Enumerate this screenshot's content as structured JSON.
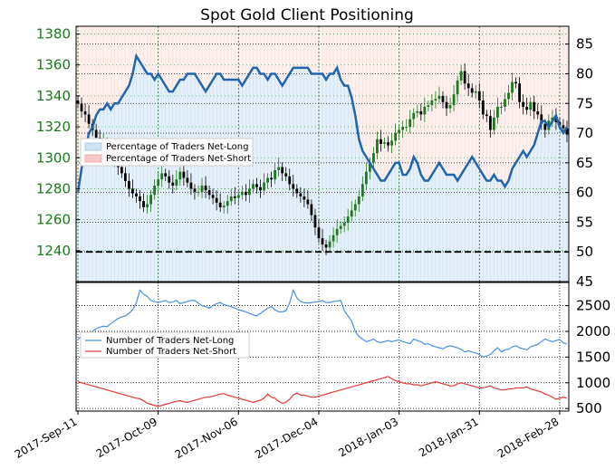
{
  "chart_data": [
    {
      "type": "candlestick",
      "title": "Spot Gold Client Positioning",
      "ylim": [
        1220,
        1385
      ],
      "y_ticks": [
        1240,
        1260,
        1280,
        1300,
        1320,
        1340,
        1360,
        1380
      ],
      "x_tick_labels": [
        "2017-Sep-11",
        "2017-Oct-09",
        "2017-Nov-06",
        "2017-Dec-04",
        "2018-Jan-03",
        "2018-Jan-31",
        "2018-Feb-28"
      ],
      "reference_line": 50,
      "secondary_axis": {
        "label": "",
        "ylim": [
          45,
          88
        ],
        "ticks": [
          45,
          50,
          55,
          60,
          65,
          70,
          75,
          80,
          85
        ]
      },
      "legend": [
        {
          "label": "Percentage of Traders Net-Long",
          "color": "#cfe3f7"
        },
        {
          "label": "Percentage of Traders Net-Short",
          "color": "#f7c9c9"
        }
      ],
      "series": [
        {
          "name": "Price",
          "close": [
            1335,
            1330,
            1328,
            1322,
            1318,
            1313,
            1306,
            1310,
            1305,
            1298,
            1300,
            1294,
            1290,
            1285,
            1280,
            1277,
            1275,
            1272,
            1268,
            1270,
            1276,
            1282,
            1286,
            1290,
            1288,
            1284,
            1282,
            1286,
            1291,
            1287,
            1284,
            1280,
            1278,
            1278,
            1282,
            1279,
            1276,
            1274,
            1271,
            1268,
            1269,
            1272,
            1275,
            1274,
            1276,
            1278,
            1276,
            1280,
            1283,
            1281,
            1279,
            1284,
            1287,
            1286,
            1292,
            1294,
            1290,
            1288,
            1283,
            1280,
            1277,
            1275,
            1273,
            1270,
            1263,
            1255,
            1248,
            1244,
            1242,
            1246,
            1250,
            1254,
            1256,
            1258,
            1262,
            1266,
            1270,
            1275,
            1283,
            1291,
            1297,
            1303,
            1312,
            1309,
            1310,
            1308,
            1311,
            1316,
            1318,
            1320,
            1320,
            1325,
            1329,
            1330,
            1328,
            1333,
            1334,
            1337,
            1338,
            1340,
            1336,
            1332,
            1334,
            1341,
            1350,
            1356,
            1348,
            1345,
            1342,
            1343,
            1337,
            1328,
            1327,
            1318,
            1326,
            1333,
            1333,
            1338,
            1342,
            1349,
            1348,
            1336,
            1333,
            1331,
            1336,
            1330,
            1328,
            1322,
            1318,
            1324,
            1326,
            1323,
            1321,
            1319,
            1315
          ]
        },
        {
          "name": "Percentage of Traders Net-Long",
          "values": [
            60,
            64,
            67,
            70,
            71,
            73,
            74,
            74,
            75,
            74,
            75,
            75,
            76,
            77,
            78,
            80,
            83,
            82,
            81,
            80,
            80,
            79,
            80,
            79,
            78,
            77,
            77,
            78,
            79,
            79,
            80,
            80,
            80,
            79,
            78,
            77,
            78,
            79,
            80,
            80,
            79,
            79,
            79,
            79,
            79,
            78,
            79,
            80,
            81,
            81,
            80,
            80,
            79,
            80,
            80,
            79,
            78,
            79,
            80,
            81,
            81,
            81,
            81,
            81,
            80,
            80,
            80,
            80,
            79,
            80,
            80,
            81,
            79,
            78,
            78,
            76,
            73,
            69,
            67,
            66,
            65,
            64,
            63,
            62,
            62,
            63,
            64,
            65,
            65,
            63,
            63,
            64,
            66,
            65,
            63,
            62,
            62,
            63,
            64,
            65,
            64,
            63,
            63,
            63,
            62,
            63,
            64,
            65,
            66,
            65,
            64,
            63,
            62,
            62,
            63,
            62,
            62,
            61,
            62,
            64,
            65,
            66,
            67,
            66,
            67,
            68,
            70,
            72,
            72,
            71,
            72,
            73,
            71,
            70,
            71
          ]
        },
        {
          "name": "Number of Traders Net-Long",
          "values": [
            1850,
            1900,
            1980,
            1950,
            2000,
            2050,
            2080,
            2100,
            2090,
            2150,
            2200,
            2250,
            2280,
            2300,
            2350,
            2420,
            2550,
            2800,
            2720,
            2680,
            2600,
            2580,
            2560,
            2580,
            2600,
            2560,
            2570,
            2600,
            2540,
            2560,
            2580,
            2600,
            2600,
            2550,
            2500,
            2480,
            2450,
            2500,
            2540,
            2560,
            2520,
            2500,
            2480,
            2450,
            2420,
            2400,
            2380,
            2350,
            2320,
            2300,
            2350,
            2400,
            2450,
            2480,
            2420,
            2380,
            2380,
            2400,
            2550,
            2800,
            2650,
            2580,
            2560,
            2550,
            2560,
            2570,
            2580,
            2600,
            2560,
            2560,
            2580,
            2590,
            2600,
            2400,
            2300,
            2200,
            2000,
            1900,
            1850,
            1800,
            1820,
            1850,
            1800,
            1780,
            1800,
            1820,
            1800,
            1820,
            1830,
            1800,
            1780,
            1760,
            1850,
            1820,
            1800,
            1750,
            1760,
            1720,
            1700,
            1680,
            1660,
            1700,
            1720,
            1700,
            1680,
            1650,
            1600,
            1620,
            1600,
            1580,
            1550,
            1500,
            1520,
            1550,
            1620,
            1680,
            1600,
            1640,
            1650,
            1700,
            1720,
            1680,
            1660,
            1640,
            1700,
            1720,
            1750,
            1800,
            1850,
            1820,
            1800,
            1820,
            1840,
            1780,
            1750
          ]
        },
        {
          "name": "Number of Traders Net-Short",
          "values": [
            1020,
            1000,
            980,
            960,
            940,
            920,
            900,
            880,
            860,
            840,
            820,
            800,
            780,
            760,
            740,
            720,
            700,
            690,
            650,
            600,
            580,
            560,
            540,
            560,
            580,
            600,
            620,
            640,
            650,
            630,
            620,
            640,
            660,
            680,
            700,
            720,
            720,
            740,
            760,
            780,
            790,
            760,
            740,
            720,
            700,
            680,
            660,
            640,
            620,
            640,
            660,
            700,
            780,
            720,
            700,
            640,
            600,
            620,
            680,
            760,
            800,
            760,
            760,
            740,
            720,
            720,
            740,
            760,
            780,
            800,
            820,
            840,
            860,
            880,
            900,
            920,
            940,
            960,
            980,
            1000,
            1020,
            1040,
            1060,
            1080,
            1100,
            1120,
            1080,
            1040,
            1020,
            1000,
            980,
            980,
            960,
            960,
            940,
            960,
            980,
            1000,
            1020,
            1000,
            980,
            960,
            940,
            940,
            980,
            1000,
            980,
            960,
            940,
            920,
            900,
            900,
            920,
            940,
            900,
            880,
            860,
            860,
            880,
            880,
            900,
            900,
            900,
            920,
            880,
            860,
            840,
            820,
            780,
            760,
            720,
            680,
            700,
            720,
            700
          ]
        }
      ]
    },
    {
      "type": "line",
      "y_ticks": [
        500,
        1000,
        1500,
        2000,
        2500
      ],
      "ylim": [
        450,
        2950
      ],
      "legend": [
        {
          "label": "Number of Traders Net-Long",
          "color": "#4a90e2"
        },
        {
          "label": "Number of Traders Net-Short",
          "color": "#e53935"
        }
      ]
    }
  ]
}
